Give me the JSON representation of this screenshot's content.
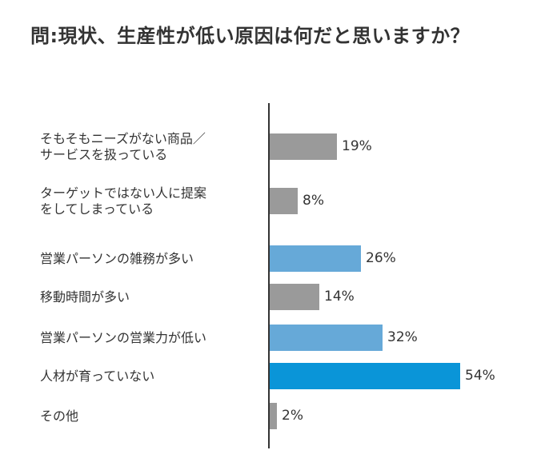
{
  "title": "問:現状、生産性が低い原因は何だと思いますか？",
  "chart_data": {
    "type": "bar",
    "orientation": "horizontal",
    "title": "問:現状、生産性が低い原因は何だと思いますか？",
    "xlabel": "",
    "ylabel": "",
    "unit": "%",
    "grid": false,
    "legend": null,
    "categories": [
      "そもそもニーズがない商品／サービスを扱っている",
      "ターゲットではない人に提案をしてしまっている",
      "営業パーソンの雑務が多い",
      "移動時間が多い",
      "営業パーソンの営業力が低い",
      "人材が育っていない",
      "その他"
    ],
    "values": [
      19,
      8,
      26,
      14,
      32,
      54,
      2
    ],
    "colors": [
      "#9a9a9a",
      "#9a9a9a",
      "#66a9d8",
      "#9a9a9a",
      "#66a9d8",
      "#0a95d8",
      "#9a9a9a"
    ]
  },
  "rows": [
    {
      "label_lines": [
        "そもそもニーズがない商品／",
        "サービスを扱っている"
      ],
      "value_label": "19%"
    },
    {
      "label_lines": [
        "ターゲットではない人に提案",
        "をしてしまっている"
      ],
      "value_label": "8%"
    },
    {
      "label_lines": [
        "営業パーソンの雑務が多い"
      ],
      "value_label": "26%"
    },
    {
      "label_lines": [
        "移動時間が多い"
      ],
      "value_label": "14%"
    },
    {
      "label_lines": [
        "営業パーソンの営業力が低い"
      ],
      "value_label": "32%"
    },
    {
      "label_lines": [
        "人材が育っていない"
      ],
      "value_label": "54%"
    },
    {
      "label_lines": [
        "その他"
      ],
      "value_label": "2%"
    }
  ],
  "colors": {
    "text": "#333333",
    "axis": "#333333",
    "gray": "#9a9a9a",
    "light_blue": "#66a9d8",
    "blue": "#0a95d8"
  }
}
